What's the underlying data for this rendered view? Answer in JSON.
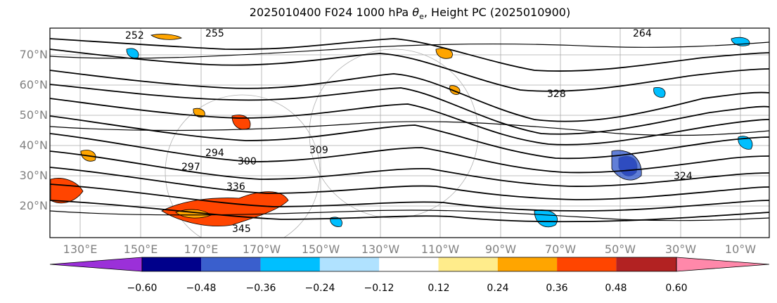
{
  "title_main": "2025010400 F024 1000 hPa ",
  "title_theta": "θ",
  "title_sub": "e",
  "title_rest": ", Height PC (2025010900)",
  "lat_labels": [
    "70°N",
    "60°N",
    "50°N",
    "40°N",
    "30°N",
    "20°N"
  ],
  "lon_labels": [
    "130°E",
    "150°E",
    "170°E",
    "170°W",
    "150°W",
    "130°W",
    "110°W",
    "90°W",
    "70°W",
    "50°W",
    "30°W",
    "10°W"
  ],
  "contour_labels": [
    "252",
    "255",
    "264",
    "294",
    "297",
    "300",
    "309",
    "336",
    "345",
    "324",
    "328"
  ],
  "colorbar": {
    "ticks": [
      "−0.60",
      "−0.48",
      "−0.36",
      "−0.24",
      "−0.12",
      "0.12",
      "0.24",
      "0.36",
      "0.48",
      "0.60"
    ],
    "colors": [
      "#9b30d9",
      "#00008b",
      "#3a5fcd",
      "#00bfff",
      "#b0e2ff",
      "#ffffff",
      "#ffec8b",
      "#ffa500",
      "#ff4500",
      "#b22222",
      "#ff88aa"
    ]
  }
}
